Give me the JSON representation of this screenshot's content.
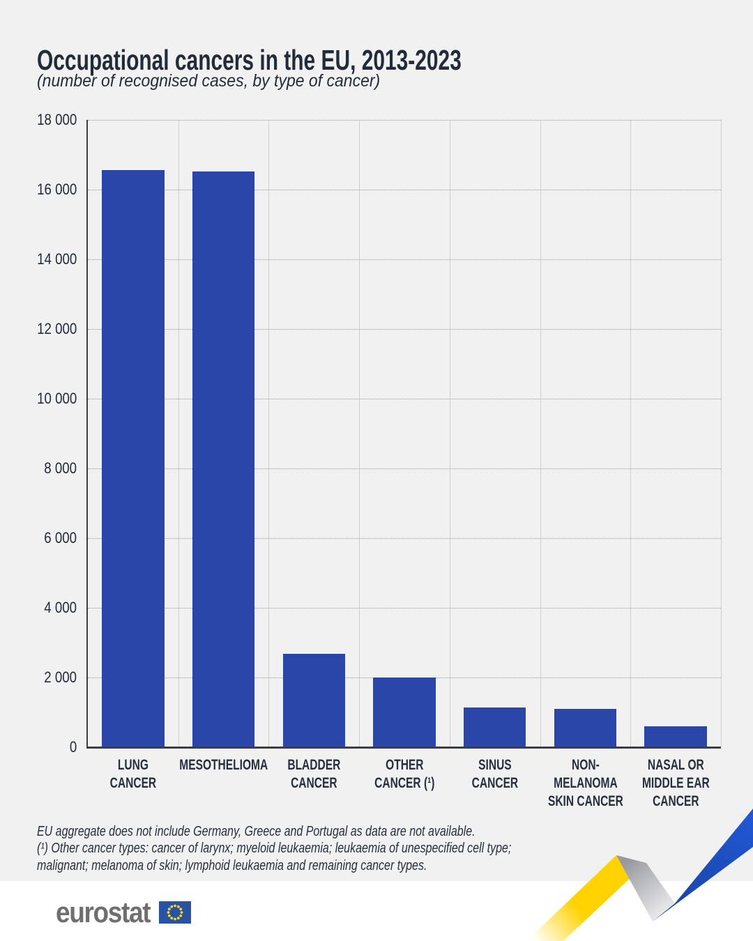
{
  "page": {
    "title": "Occupational cancers in the EU, 2013-2023",
    "subtitle": "(number of recognised cases, by type of cancer)"
  },
  "chart_data": {
    "type": "bar",
    "title": "Occupational cancers in the EU, 2013-2023",
    "subtitle": "(number of recognised cases, by type of cancer)",
    "xlabel": "",
    "ylabel": "",
    "categories": [
      "LUNG CANCER",
      "MESOTHELIOMA",
      "BLADDER CANCER",
      "OTHER CANCER (¹)",
      "SINUS CANCER",
      "NON-MELANOMA SKIN CANCER",
      "NASAL OR MIDDLE EAR CANCER"
    ],
    "category_label_lines": [
      [
        "LUNG",
        "CANCER"
      ],
      [
        "MESOTHELIOMA"
      ],
      [
        "BLADDER",
        "CANCER"
      ],
      [
        "OTHER",
        "CANCER (¹)"
      ],
      [
        "SINUS",
        "CANCER"
      ],
      [
        "NON-",
        "MELANOMA",
        "SKIN CANCER"
      ],
      [
        "NASAL OR",
        "MIDDLE EAR",
        "CANCER"
      ]
    ],
    "values": [
      16560,
      16520,
      2680,
      2000,
      1140,
      1100,
      610
    ],
    "ylim": [
      0,
      18000
    ],
    "ytick_step": 2000,
    "yticks": [
      {
        "value": 18000,
        "label": "18 000"
      },
      {
        "value": 16000,
        "label": "16 000"
      },
      {
        "value": 14000,
        "label": "14 000"
      },
      {
        "value": 12000,
        "label": "12 000"
      },
      {
        "value": 10000,
        "label": "10 000"
      },
      {
        "value": 8000,
        "label": "8 000"
      },
      {
        "value": 6000,
        "label": "6 000"
      },
      {
        "value": 4000,
        "label": "4 000"
      },
      {
        "value": 2000,
        "label": "2 000"
      },
      {
        "value": 0,
        "label": "0"
      }
    ],
    "bar_color": "#2b46a9",
    "grid": true,
    "legend": false
  },
  "notes": {
    "lines": [
      "EU aggregate does not include Germany, Greece and Portugal as data are not available.",
      "(¹) Other cancer types: cancer of larynx; myeloid leukaemia; leukaemia of unespecified cell type;",
      "malignant; melanoma of skin; lymphoid leukaemia and remaining cancer types."
    ]
  },
  "footer": {
    "brand": "eurostat"
  },
  "colors": {
    "background": "#f1f1f2",
    "bar": "#2b46a9",
    "axis": "#3b3e45",
    "grid_dotted": "#97989c",
    "grid_vertical": "#cdced2",
    "text_dark": "#222b39",
    "footer_background": "#ffffff",
    "logo_gray": "#6e6f71",
    "flag_blue": "#2853a4",
    "star_yellow": "#ffd617",
    "ribbon_yellow": "#ffd200",
    "ribbon_gray": "#a6a8ad",
    "ribbon_blue": "#1e51cd"
  }
}
